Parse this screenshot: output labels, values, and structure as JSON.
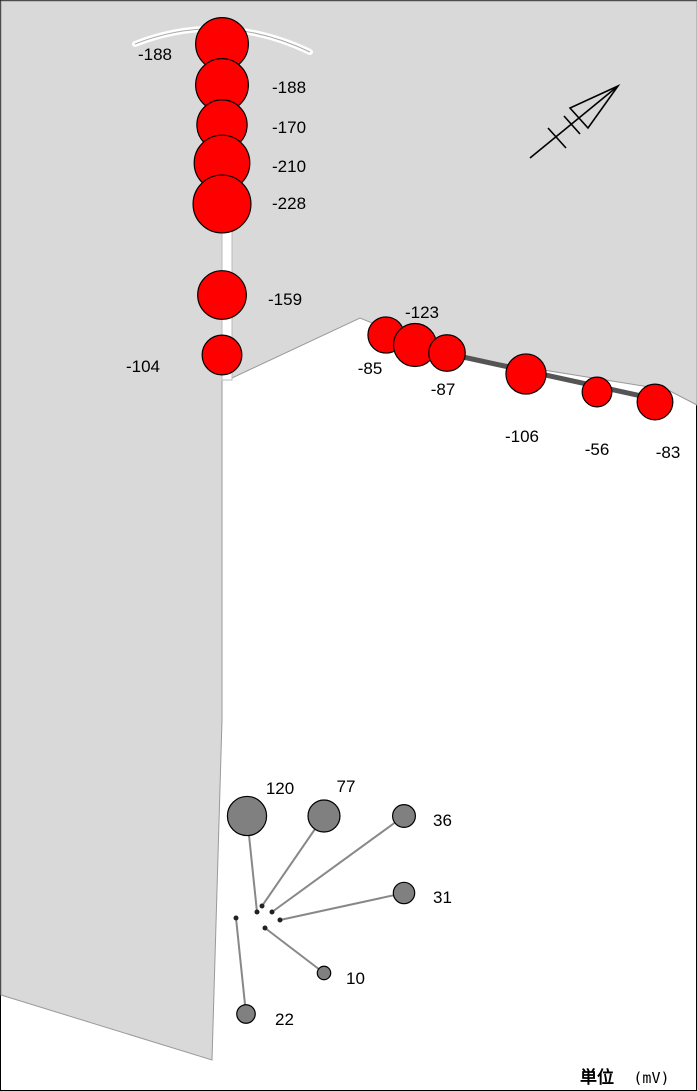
{
  "colors": {
    "concrete": "#d9d9d9",
    "negative": "#ff0000",
    "positive": "#808080",
    "outline": "#000000"
  },
  "icons": {
    "compass": "north-arrow-icon"
  },
  "unit": {
    "title": "単位",
    "value": "(mV)"
  },
  "negative_points": [
    {
      "value": "-188"
    },
    {
      "value": "-188"
    },
    {
      "value": "-170"
    },
    {
      "value": "-210"
    },
    {
      "value": "-228"
    },
    {
      "value": "-159"
    },
    {
      "value": "-104"
    },
    {
      "value": "-85"
    },
    {
      "value": "-123"
    },
    {
      "value": "-87"
    },
    {
      "value": "-106"
    },
    {
      "value": "-56"
    },
    {
      "value": "-83"
    }
  ],
  "positive_points": [
    {
      "value": "120"
    },
    {
      "value": "77"
    },
    {
      "value": "36"
    },
    {
      "value": "31"
    },
    {
      "value": "10"
    },
    {
      "value": "22"
    }
  ]
}
